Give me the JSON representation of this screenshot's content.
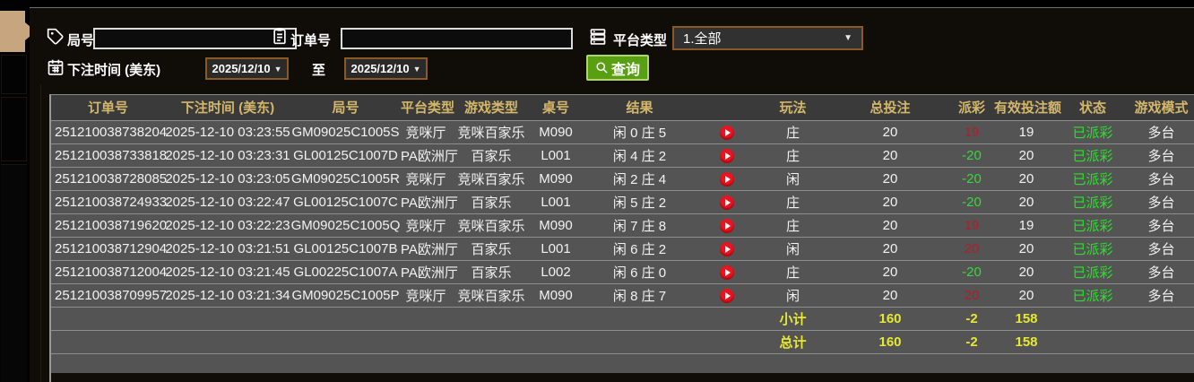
{
  "filters": {
    "game_no_label": "局号",
    "game_no_value": "",
    "order_no_label": "订单号",
    "order_no_value": "",
    "platform_type_label": "平台类型",
    "platform_type_value": "1.全部",
    "bet_time_label": "下注时间 (美东)",
    "date_from": "2025/12/10",
    "to_label": "至",
    "date_to": "2025/12/10",
    "search_button_label": "查询",
    "caret": "▼"
  },
  "icons": {
    "game_no": "tag-icon",
    "order_no": "clipboard-icon",
    "platform_type": "server-icon",
    "bet_time": "calendar-icon",
    "search": "magnifier-icon",
    "result_play": "play-icon"
  },
  "colors": {
    "header_gold": "#d4b76a",
    "accent_border": "#8a5a22",
    "button_green": "#58a011",
    "payout_win_red": "#b01e28",
    "payout_loss_green": "#3ed43e",
    "status_green": "#27e227",
    "summary_yellow": "#e8e832",
    "tab_tan": "#c7a67f"
  },
  "table": {
    "headers": [
      "订单号",
      "下注时间 (美东)",
      "局号",
      "平台类型",
      "游戏类型",
      "桌号",
      "结果",
      "",
      "玩法",
      "总投注",
      "派彩",
      "有效投注额",
      "状态",
      "游戏模式"
    ],
    "rows": [
      {
        "order": "251210038738204",
        "time": "2025-12-10 03:23:55",
        "game_no": "GM09025C1005S",
        "platform": "竞咪厅",
        "game_type": "竞咪百家乐",
        "table_no": "M090",
        "result": "闲 0 庄 5",
        "bet_type": "庄",
        "total_bet": "20",
        "payout": "19",
        "payout_tone": "pos",
        "valid_bet": "19",
        "status": "已派彩",
        "mode": "多台"
      },
      {
        "order": "251210038733818",
        "time": "2025-12-10 03:23:31",
        "game_no": "GL00125C1007D",
        "platform": "PA欧洲厅",
        "game_type": "百家乐",
        "table_no": "L001",
        "result": "闲 4 庄 2",
        "bet_type": "庄",
        "total_bet": "20",
        "payout": "-20",
        "payout_tone": "neg",
        "valid_bet": "20",
        "status": "已派彩",
        "mode": "多台"
      },
      {
        "order": "251210038728085",
        "time": "2025-12-10 03:23:05",
        "game_no": "GM09025C1005R",
        "platform": "竞咪厅",
        "game_type": "竞咪百家乐",
        "table_no": "M090",
        "result": "闲 2 庄 4",
        "bet_type": "闲",
        "total_bet": "20",
        "payout": "-20",
        "payout_tone": "neg",
        "valid_bet": "20",
        "status": "已派彩",
        "mode": "多台"
      },
      {
        "order": "251210038724933",
        "time": "2025-12-10 03:22:47",
        "game_no": "GL00125C1007C",
        "platform": "PA欧洲厅",
        "game_type": "百家乐",
        "table_no": "L001",
        "result": "闲 5 庄 2",
        "bet_type": "庄",
        "total_bet": "20",
        "payout": "-20",
        "payout_tone": "neg",
        "valid_bet": "20",
        "status": "已派彩",
        "mode": "多台"
      },
      {
        "order": "251210038719620",
        "time": "2025-12-10 03:22:23",
        "game_no": "GM09025C1005Q",
        "platform": "竞咪厅",
        "game_type": "竞咪百家乐",
        "table_no": "M090",
        "result": "闲 7 庄 8",
        "bet_type": "庄",
        "total_bet": "20",
        "payout": "19",
        "payout_tone": "pos",
        "valid_bet": "19",
        "status": "已派彩",
        "mode": "多台"
      },
      {
        "order": "251210038712904",
        "time": "2025-12-10 03:21:51",
        "game_no": "GL00125C1007B",
        "platform": "PA欧洲厅",
        "game_type": "百家乐",
        "table_no": "L001",
        "result": "闲 6 庄 2",
        "bet_type": "闲",
        "total_bet": "20",
        "payout": "20",
        "payout_tone": "pos",
        "valid_bet": "20",
        "status": "已派彩",
        "mode": "多台"
      },
      {
        "order": "251210038712004",
        "time": "2025-12-10 03:21:45",
        "game_no": "GL00225C1007A",
        "platform": "PA欧洲厅",
        "game_type": "百家乐",
        "table_no": "L002",
        "result": "闲 6 庄 0",
        "bet_type": "庄",
        "total_bet": "20",
        "payout": "-20",
        "payout_tone": "neg",
        "valid_bet": "20",
        "status": "已派彩",
        "mode": "多台"
      },
      {
        "order": "251210038709957",
        "time": "2025-12-10 03:21:34",
        "game_no": "GM09025C1005P",
        "platform": "竞咪厅",
        "game_type": "竞咪百家乐",
        "table_no": "M090",
        "result": "闲 8 庄 7",
        "bet_type": "闲",
        "total_bet": "20",
        "payout": "20",
        "payout_tone": "pos",
        "valid_bet": "20",
        "status": "已派彩",
        "mode": "多台"
      }
    ],
    "subtotal": {
      "label": "小计",
      "total_bet": "160",
      "payout": "-2",
      "valid_bet": "158"
    },
    "total": {
      "label": "总计",
      "total_bet": "160",
      "payout": "-2",
      "valid_bet": "158"
    }
  }
}
